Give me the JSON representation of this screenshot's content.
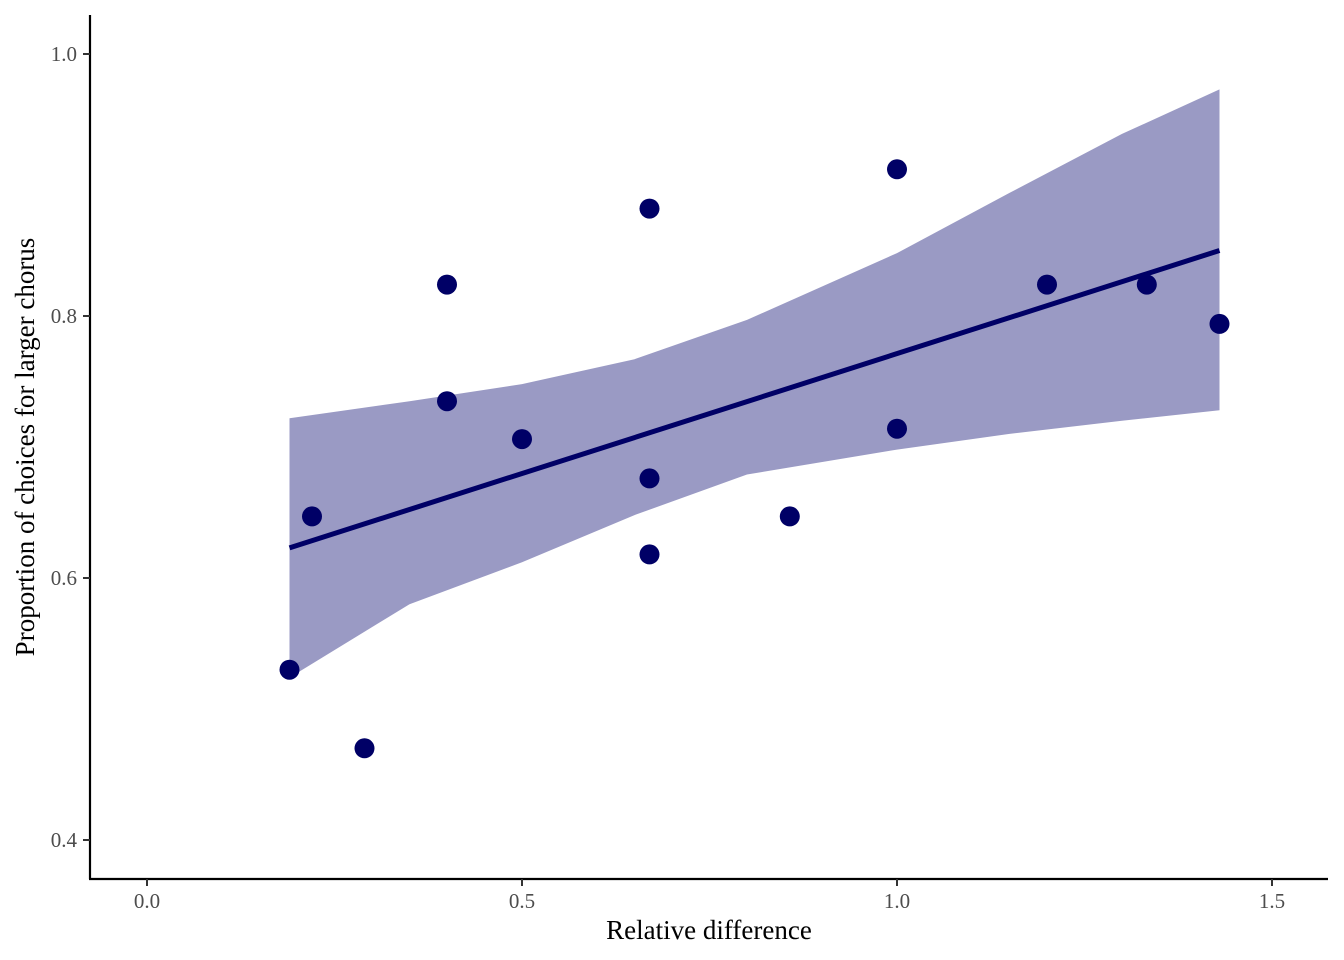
{
  "chart_data": {
    "type": "scatter",
    "title": "",
    "xlabel": "Relative difference",
    "ylabel": "Proportion of choices for larger chorus",
    "xlim": [
      -0.075,
      1.575
    ],
    "ylim": [
      0.37,
      1.03
    ],
    "xticks": [
      0.0,
      0.5,
      1.0,
      1.5
    ],
    "xtick_labels": [
      "0.0",
      "0.5",
      "1.0",
      "1.5"
    ],
    "yticks": [
      0.4,
      0.6,
      0.8,
      1.0
    ],
    "ytick_labels": [
      "0.4",
      "0.6",
      "0.8",
      "1.0"
    ],
    "grid": false,
    "point_color": "#000066",
    "line_color": "#000066",
    "ribbon_color": "#9a9ac4",
    "series": [
      {
        "kind": "points",
        "x": [
          0.19,
          0.22,
          0.29,
          0.4,
          0.4,
          0.5,
          0.67,
          0.67,
          0.67,
          0.857,
          1.0,
          1.0,
          1.2,
          1.333,
          1.43
        ],
        "y": [
          0.53,
          0.647,
          0.47,
          0.824,
          0.735,
          0.706,
          0.882,
          0.676,
          0.618,
          0.647,
          0.912,
          0.714,
          0.824,
          0.824,
          0.794
        ]
      },
      {
        "kind": "fit_line",
        "x": [
          0.19,
          1.43
        ],
        "y": [
          0.623,
          0.85
        ]
      },
      {
        "kind": "confidence_band",
        "x": [
          0.19,
          0.35,
          0.5,
          0.65,
          0.8,
          1.0,
          1.15,
          1.3,
          1.43
        ],
        "upper": [
          0.722,
          0.735,
          0.748,
          0.767,
          0.797,
          0.848,
          0.894,
          0.939,
          0.973
        ],
        "lower": [
          0.524,
          0.58,
          0.612,
          0.648,
          0.679,
          0.698,
          0.71,
          0.72,
          0.728
        ]
      }
    ]
  }
}
